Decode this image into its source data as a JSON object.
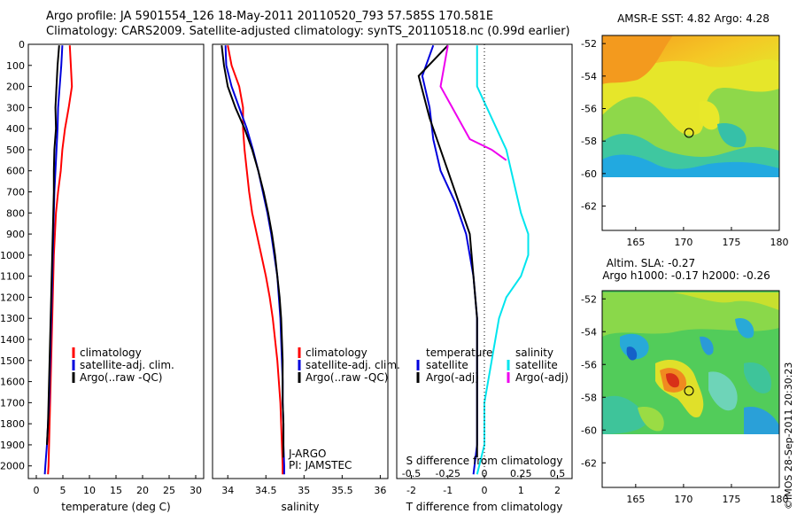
{
  "title_line1": "Argo profile: JA 5901554_126 18-May-2011 20110520_793 57.585S 170.581E",
  "title_line2": "Climatology: CARS2009. Satellite-adjusted climatology: synTS_20110518.nc (0.99d earlier)",
  "footer_credit": "©IMOS 28-Sep-2011 20:30:23",
  "colors": {
    "climatology": "#ff0000",
    "satellite": "#0000dd",
    "argo": "#000000",
    "sal_sat": "#00e5ee",
    "sal_argo": "#ee00ee"
  },
  "chart_data": [
    {
      "type": "line",
      "id": "temperature",
      "xlabel": "temperature (deg C)",
      "ylabel": "",
      "xlim": [
        -1.5,
        31.5
      ],
      "ylim": [
        2060,
        0
      ],
      "xticks": [
        0,
        5,
        10,
        15,
        20,
        25,
        30
      ],
      "yticks": [
        0,
        100,
        200,
        300,
        400,
        500,
        600,
        700,
        800,
        900,
        1000,
        1100,
        1200,
        1300,
        1400,
        1500,
        1600,
        1700,
        1800,
        1900,
        2000
      ],
      "legend": [
        "climatology",
        "satellite-adj. clim.",
        "Argo(..raw -QC)"
      ],
      "series": [
        {
          "name": "climatology",
          "color": "#ff0000",
          "points": [
            [
              6.3,
              5
            ],
            [
              6.5,
              100
            ],
            [
              6.7,
              200
            ],
            [
              6.1,
              300
            ],
            [
              5.4,
              400
            ],
            [
              4.9,
              500
            ],
            [
              4.6,
              600
            ],
            [
              4.1,
              700
            ],
            [
              3.7,
              800
            ],
            [
              3.5,
              900
            ],
            [
              3.3,
              1000
            ],
            [
              3.2,
              1100
            ],
            [
              3.1,
              1200
            ],
            [
              3.0,
              1300
            ],
            [
              2.9,
              1400
            ],
            [
              2.8,
              1500
            ],
            [
              2.7,
              1600
            ],
            [
              2.6,
              1700
            ],
            [
              2.5,
              1800
            ],
            [
              2.4,
              1900
            ],
            [
              2.3,
              2000
            ],
            [
              2.2,
              2040
            ]
          ]
        },
        {
          "name": "satellite-adj. clim.",
          "color": "#0000dd",
          "points": [
            [
              4.9,
              5
            ],
            [
              4.7,
              100
            ],
            [
              4.4,
              200
            ],
            [
              4.1,
              300
            ],
            [
              4.0,
              400
            ],
            [
              3.8,
              500
            ],
            [
              3.6,
              600
            ],
            [
              3.4,
              700
            ],
            [
              3.3,
              800
            ],
            [
              3.2,
              900
            ],
            [
              3.1,
              1000
            ],
            [
              3.0,
              1100
            ],
            [
              2.9,
              1200
            ],
            [
              2.8,
              1300
            ],
            [
              2.7,
              1400
            ],
            [
              2.6,
              1500
            ],
            [
              2.5,
              1600
            ],
            [
              2.4,
              1700
            ],
            [
              2.2,
              1800
            ],
            [
              2.0,
              1900
            ],
            [
              1.7,
              2000
            ],
            [
              1.6,
              2040
            ]
          ]
        },
        {
          "name": "Argo(..raw -QC)",
          "color": "#000000",
          "points": [
            [
              4.3,
              5
            ],
            [
              4.0,
              100
            ],
            [
              3.8,
              200
            ],
            [
              3.6,
              300
            ],
            [
              3.7,
              400
            ],
            [
              3.4,
              500
            ],
            [
              3.3,
              600
            ],
            [
              3.3,
              700
            ],
            [
              3.2,
              800
            ],
            [
              3.1,
              900
            ],
            [
              3.0,
              1000
            ],
            [
              2.9,
              1100
            ],
            [
              2.8,
              1200
            ],
            [
              2.7,
              1300
            ],
            [
              2.6,
              1400
            ],
            [
              2.5,
              1500
            ],
            [
              2.4,
              1600
            ],
            [
              2.3,
              1700
            ],
            [
              2.2,
              1800
            ],
            [
              2.0,
              1900
            ]
          ]
        }
      ]
    },
    {
      "type": "line",
      "id": "salinity",
      "xlabel": "salinity",
      "ylabel": "",
      "xlim": [
        33.8,
        36.1
      ],
      "ylim": [
        2060,
        0
      ],
      "xticks": [
        34,
        34.5,
        35,
        35.5,
        36
      ],
      "legend": [
        "climatology",
        "satellite-adj. clim.",
        "Argo(..raw -QC)"
      ],
      "annotation_line1": "J-ARGO",
      "annotation_line2": "PI: JAMSTEC",
      "series": [
        {
          "name": "climatology",
          "color": "#ff0000",
          "points": [
            [
              34.0,
              5
            ],
            [
              34.05,
              100
            ],
            [
              34.15,
              200
            ],
            [
              34.2,
              300
            ],
            [
              34.2,
              400
            ],
            [
              34.22,
              500
            ],
            [
              34.25,
              600
            ],
            [
              34.28,
              700
            ],
            [
              34.32,
              800
            ],
            [
              34.38,
              900
            ],
            [
              34.44,
              1000
            ],
            [
              34.5,
              1100
            ],
            [
              34.55,
              1200
            ],
            [
              34.59,
              1300
            ],
            [
              34.62,
              1400
            ],
            [
              34.65,
              1500
            ],
            [
              34.67,
              1600
            ],
            [
              34.69,
              1700
            ],
            [
              34.7,
              1800
            ],
            [
              34.71,
              1900
            ],
            [
              34.72,
              2000
            ],
            [
              34.72,
              2040
            ]
          ]
        },
        {
          "name": "satellite-adj. clim.",
          "color": "#0000dd",
          "points": [
            [
              33.97,
              5
            ],
            [
              33.98,
              100
            ],
            [
              34.05,
              200
            ],
            [
              34.15,
              300
            ],
            [
              34.25,
              400
            ],
            [
              34.33,
              500
            ],
            [
              34.4,
              600
            ],
            [
              34.46,
              700
            ],
            [
              34.52,
              800
            ],
            [
              34.57,
              900
            ],
            [
              34.61,
              1000
            ],
            [
              34.65,
              1100
            ],
            [
              34.67,
              1200
            ],
            [
              34.69,
              1300
            ],
            [
              34.7,
              1400
            ],
            [
              34.71,
              1500
            ],
            [
              34.72,
              1600
            ],
            [
              34.72,
              1700
            ],
            [
              34.73,
              1800
            ],
            [
              34.73,
              1900
            ],
            [
              34.74,
              2000
            ],
            [
              34.74,
              2040
            ]
          ]
        },
        {
          "name": "Argo(..raw -QC)",
          "color": "#000000",
          "points": [
            [
              33.92,
              5
            ],
            [
              33.95,
              100
            ],
            [
              34.0,
              200
            ],
            [
              34.1,
              300
            ],
            [
              34.22,
              400
            ],
            [
              34.32,
              500
            ],
            [
              34.4,
              600
            ],
            [
              34.47,
              700
            ],
            [
              34.53,
              800
            ],
            [
              34.58,
              900
            ],
            [
              34.62,
              1000
            ],
            [
              34.65,
              1100
            ],
            [
              34.68,
              1200
            ],
            [
              34.7,
              1300
            ],
            [
              34.71,
              1400
            ],
            [
              34.72,
              1500
            ],
            [
              34.72,
              1600
            ],
            [
              34.72,
              1700
            ],
            [
              34.73,
              1800
            ],
            [
              34.73,
              1900
            ],
            [
              34.73,
              1960
            ]
          ]
        }
      ]
    },
    {
      "type": "line",
      "id": "difference",
      "xlabel": "T difference from climatology",
      "xlabel_top": "S difference from climatology",
      "ylabel": "",
      "xlim": [
        -2.4,
        2.4
      ],
      "ylim": [
        2060,
        0
      ],
      "xticks": [
        -2,
        -1,
        0,
        1,
        2
      ],
      "xticks_salinity": [
        -0.5,
        -0.25,
        0,
        0.25,
        0.5
      ],
      "legend_temperature_title": "temperature",
      "legend_salinity_title": "salinity",
      "legend_temperature": [
        "satellite",
        "Argo(-adj)"
      ],
      "legend_salinity": [
        "satellite",
        "Argo(-adj)"
      ],
      "series": [
        {
          "name": "T satellite",
          "color": "#0000dd",
          "points": [
            [
              -1.4,
              5
            ],
            [
              -1.7,
              150
            ],
            [
              -1.5,
              300
            ],
            [
              -1.4,
              450
            ],
            [
              -1.2,
              600
            ],
            [
              -0.8,
              750
            ],
            [
              -0.5,
              900
            ],
            [
              -0.3,
              1100
            ],
            [
              -0.2,
              1300
            ],
            [
              -0.2,
              1500
            ],
            [
              -0.2,
              1700
            ],
            [
              -0.2,
              1900
            ],
            [
              -0.3,
              2040
            ]
          ]
        },
        {
          "name": "T Argo(-adj)",
          "color": "#000000",
          "points": [
            [
              -1.0,
              5
            ],
            [
              -1.8,
              150
            ],
            [
              -1.5,
              350
            ],
            [
              -1.2,
              500
            ],
            [
              -1.0,
              600
            ],
            [
              -0.6,
              800
            ],
            [
              -0.4,
              900
            ],
            [
              -0.3,
              1100
            ],
            [
              -0.2,
              1300
            ],
            [
              -0.2,
              1500
            ],
            [
              -0.2,
              1700
            ],
            [
              -0.2,
              1900
            ],
            [
              -0.2,
              1960
            ]
          ]
        },
        {
          "name": "S satellite",
          "color": "#00e5ee",
          "points": [
            [
              -0.05,
              5
            ],
            [
              -0.05,
              200
            ],
            [
              0.05,
              350
            ],
            [
              0.15,
              500
            ],
            [
              0.2,
              650
            ],
            [
              0.25,
              800
            ],
            [
              0.3,
              900
            ],
            [
              0.3,
              1000
            ],
            [
              0.25,
              1100
            ],
            [
              0.15,
              1200
            ],
            [
              0.1,
              1300
            ],
            [
              0.05,
              1500
            ],
            [
              0.0,
              1700
            ],
            [
              0.0,
              1900
            ],
            [
              -0.05,
              2040
            ]
          ]
        },
        {
          "name": "S Argo(-adj)",
          "color": "#ee00ee",
          "points": [
            [
              -0.25,
              5
            ],
            [
              -0.3,
              200
            ],
            [
              -0.1,
              450
            ],
            [
              0.05,
              500
            ],
            [
              0.15,
              550
            ]
          ]
        }
      ]
    },
    {
      "type": "heatmap",
      "id": "sst_map",
      "title": "AMSR-E SST: 4.82 Argo: 4.28",
      "xlim": [
        161.5,
        180
      ],
      "ylim": [
        -63.5,
        -51.5
      ],
      "xticks": [
        165,
        170,
        175,
        180
      ],
      "yticks": [
        -52,
        -54,
        -56,
        -58,
        -60,
        -62
      ],
      "profile_location": [
        170.581,
        -57.585
      ]
    },
    {
      "type": "heatmap",
      "id": "sla_map",
      "title_line1": "Altim. SLA: -0.27",
      "title_line2": "Argo h1000: -0.17 h2000: -0.26",
      "xlim": [
        161.5,
        180
      ],
      "ylim": [
        -63.5,
        -51.5
      ],
      "xticks": [
        165,
        170,
        175,
        180
      ],
      "yticks": [
        -52,
        -54,
        -56,
        -58,
        -60,
        -62
      ],
      "profile_location": [
        170.581,
        -57.585
      ]
    }
  ]
}
